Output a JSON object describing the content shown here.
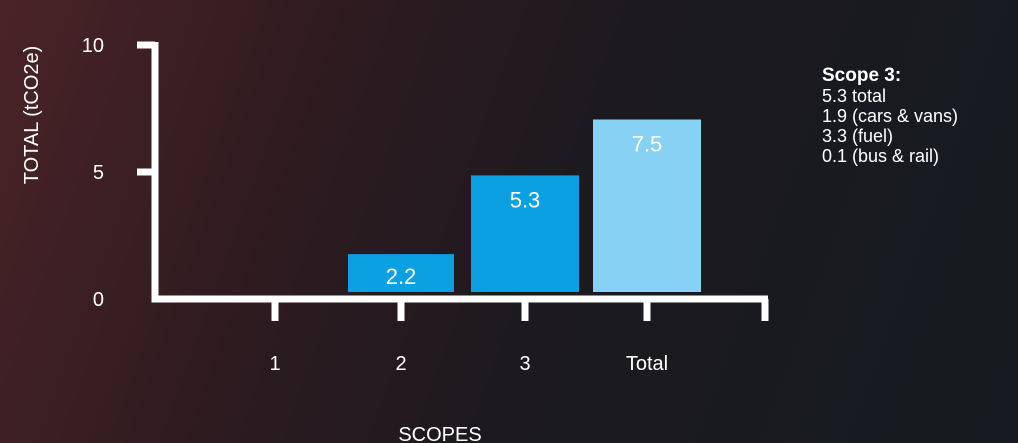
{
  "chart_data": {
    "type": "bar",
    "categories": [
      "1",
      "2",
      "3",
      "Total"
    ],
    "values": [
      0,
      2.2,
      5.3,
      7.5
    ],
    "data_labels": [
      "",
      "2.2",
      "5.3",
      "7.5"
    ],
    "title": "",
    "xlabel": "SCOPES",
    "ylabel": "TOTAL (tCO2e)",
    "ylim": [
      0,
      10
    ],
    "yticks": [
      "0",
      "5",
      "10"
    ],
    "grid": false,
    "legend": "none",
    "colors": {
      "scope": "#0aa0e2",
      "total": "#87d1f5",
      "axis": "#ffffff",
      "text": "#ffffff"
    }
  },
  "notes": {
    "title": "Scope 3:",
    "lines": [
      "5.3 total",
      "1.9 (cars & vans)",
      "3.3 (fuel)",
      "0.1 (bus & rail)"
    ]
  }
}
